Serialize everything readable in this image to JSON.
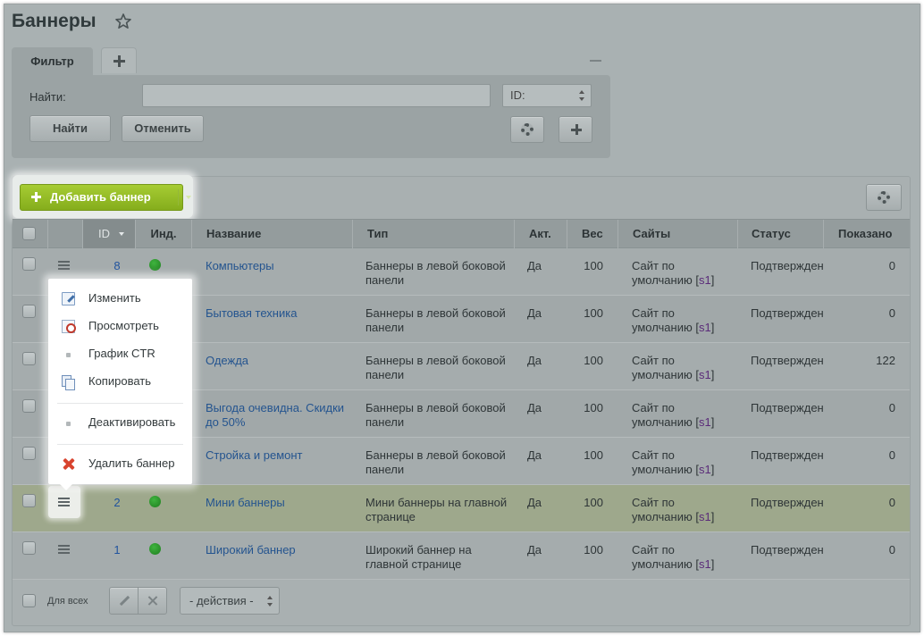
{
  "page": {
    "title": "Баннеры"
  },
  "filter": {
    "tab_label": "Фильтр",
    "add_tab_icon": "plus-icon",
    "find_label": "Найти:",
    "search_value": "",
    "field_select": "ID:",
    "find_button": "Найти",
    "cancel_button": "Отменить",
    "settings_icon": "gear-icon",
    "add_field_icon": "plus-icon"
  },
  "toolbar": {
    "add_button": "Добавить баннер",
    "settings_icon": "gear-icon"
  },
  "table": {
    "columns": {
      "id": "ID",
      "ind": "Инд.",
      "name": "Название",
      "type": "Тип",
      "active": "Акт.",
      "weight": "Вес",
      "sites": "Сайты",
      "status": "Статус",
      "shown": "Показано"
    },
    "rows": [
      {
        "id": "8",
        "name": "Компьютеры",
        "type_line1": "Баннеры в левой боковой",
        "type_line2": "панели",
        "active": "Да",
        "weight": "100",
        "site_line1": "Сайт по",
        "site_line2": "умолчанию",
        "site_code": "s1",
        "status": "Подтвержден",
        "shown": "0",
        "indicator": "green"
      },
      {
        "id": "",
        "name": "Бытовая техника",
        "type_line1": "Баннеры в левой боковой",
        "type_line2": "панели",
        "active": "Да",
        "weight": "100",
        "site_line1": "Сайт по",
        "site_line2": "умолчанию",
        "site_code": "s1",
        "status": "Подтвержден",
        "shown": "0",
        "indicator": "green"
      },
      {
        "id": "",
        "name": "Одежда",
        "type_line1": "Баннеры в левой боковой",
        "type_line2": "панели",
        "active": "Да",
        "weight": "100",
        "site_line1": "Сайт по",
        "site_line2": "умолчанию",
        "site_code": "s1",
        "status": "Подтвержден",
        "shown": "122",
        "indicator": "green"
      },
      {
        "id": "",
        "name_line1": "Выгода очевидна. Скидки",
        "name_line2": "до 50%",
        "type_line1": "Баннеры в левой боковой",
        "type_line2": "панели",
        "active": "Да",
        "weight": "100",
        "site_line1": "Сайт по",
        "site_line2": "умолчанию",
        "site_code": "s1",
        "status": "Подтвержден",
        "shown": "0",
        "indicator": "green"
      },
      {
        "id": "",
        "name": "Стройка и ремонт",
        "type_line1": "Баннеры в левой боковой",
        "type_line2": "панели",
        "active": "Да",
        "weight": "100",
        "site_line1": "Сайт по",
        "site_line2": "умолчанию",
        "site_code": "s1",
        "status": "Подтвержден",
        "shown": "0",
        "indicator": "green"
      },
      {
        "id": "2",
        "name": "Мини баннеры",
        "type_line1": "Мини баннеры на главной",
        "type_line2": "странице",
        "active": "Да",
        "weight": "100",
        "site_line1": "Сайт по",
        "site_line2": "умолчанию",
        "site_code": "s1",
        "status": "Подтвержден",
        "shown": "0",
        "indicator": "green"
      },
      {
        "id": "1",
        "name": "Широкий баннер",
        "type_line1": "Широкий баннер на",
        "type_line2": "главной странице",
        "active": "Да",
        "weight": "100",
        "site_line1": "Сайт по",
        "site_line2": "умолчанию",
        "site_code": "s1",
        "status": "Подтвержден",
        "shown": "0",
        "indicator": "green"
      }
    ]
  },
  "context_menu": {
    "items": [
      {
        "label": "Изменить",
        "icon": "edit-icon"
      },
      {
        "label": "Просмотреть",
        "icon": "view-icon"
      },
      {
        "label": "График CTR",
        "icon": "dot-icon"
      },
      {
        "label": "Копировать",
        "icon": "copy-icon"
      },
      {
        "label": "Деактивировать",
        "icon": "dot-icon"
      },
      {
        "label": "Удалить баннер",
        "icon": "delete-icon"
      }
    ]
  },
  "footer": {
    "for_all_label": "Для всех",
    "actions_select": "- действия -",
    "edit_icon": "pencil-icon",
    "delete_icon": "close-icon"
  },
  "colors": {
    "add_button": "#95bd26",
    "link": "#24548f",
    "status_green": "#2a9a2a",
    "delete_red": "#d8432e"
  }
}
